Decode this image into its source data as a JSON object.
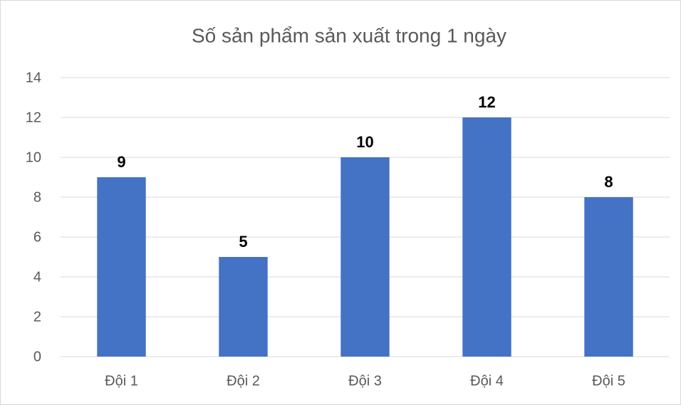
{
  "chart_data": {
    "type": "bar",
    "title": "Số sản phẩm sản xuất trong 1 ngày",
    "categories": [
      "Đội 1",
      "Đội 2",
      "Đội 3",
      "Đội 4",
      "Đội 5"
    ],
    "values": [
      9,
      5,
      10,
      12,
      8
    ],
    "color": "#4472c4",
    "ylim": [
      0,
      14
    ],
    "yticks": [
      0,
      2,
      4,
      6,
      8,
      10,
      12,
      14
    ],
    "grid": true,
    "data_labels": true
  }
}
